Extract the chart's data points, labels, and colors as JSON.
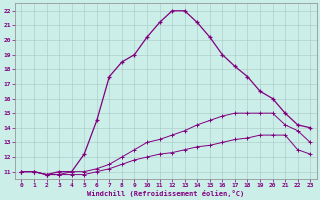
{
  "xlabel": "Windchill (Refroidissement éolien,°C)",
  "background_color": "#cceee8",
  "line_color": "#800080",
  "xlim": [
    -0.5,
    23.5
  ],
  "ylim": [
    10.5,
    22.5
  ],
  "yticks": [
    11,
    12,
    13,
    14,
    15,
    16,
    17,
    18,
    19,
    20,
    21,
    22
  ],
  "xticks": [
    0,
    1,
    2,
    3,
    4,
    5,
    6,
    7,
    8,
    9,
    10,
    11,
    12,
    13,
    14,
    15,
    16,
    17,
    18,
    19,
    20,
    21,
    22,
    23
  ],
  "curve1_x": [
    0,
    1,
    2,
    3,
    4,
    5,
    6,
    7,
    8,
    9,
    10,
    11,
    12,
    13,
    14,
    15,
    16,
    17,
    18,
    19,
    20,
    21,
    22,
    23
  ],
  "curve1_y": [
    11.0,
    11.0,
    10.8,
    11.0,
    11.0,
    12.2,
    14.5,
    17.5,
    18.5,
    19.0,
    20.2,
    21.2,
    22.0,
    22.0,
    21.2,
    20.2,
    19.0,
    18.2,
    17.5,
    16.5,
    16.0,
    15.0,
    14.2,
    14.0
  ],
  "curve2_x": [
    0,
    1,
    2,
    3,
    4,
    5,
    6,
    7,
    8,
    9,
    10,
    11,
    12,
    13,
    14,
    15,
    16,
    17,
    18,
    19,
    20,
    21,
    22,
    23
  ],
  "curve2_y": [
    11.0,
    11.0,
    10.8,
    10.8,
    11.0,
    11.0,
    11.2,
    11.5,
    12.0,
    12.5,
    13.0,
    13.2,
    13.5,
    13.8,
    14.2,
    14.5,
    14.8,
    15.0,
    15.0,
    15.0,
    15.0,
    14.2,
    13.8,
    13.0
  ],
  "curve3_x": [
    0,
    1,
    2,
    3,
    4,
    5,
    6,
    7,
    8,
    9,
    10,
    11,
    12,
    13,
    14,
    15,
    16,
    17,
    18,
    19,
    20,
    21,
    22,
    23
  ],
  "curve3_y": [
    11.0,
    11.0,
    10.8,
    10.8,
    10.8,
    10.8,
    11.0,
    11.2,
    11.5,
    11.8,
    12.0,
    12.2,
    12.3,
    12.5,
    12.7,
    12.8,
    13.0,
    13.2,
    13.3,
    13.5,
    13.5,
    13.5,
    12.5,
    12.2
  ]
}
